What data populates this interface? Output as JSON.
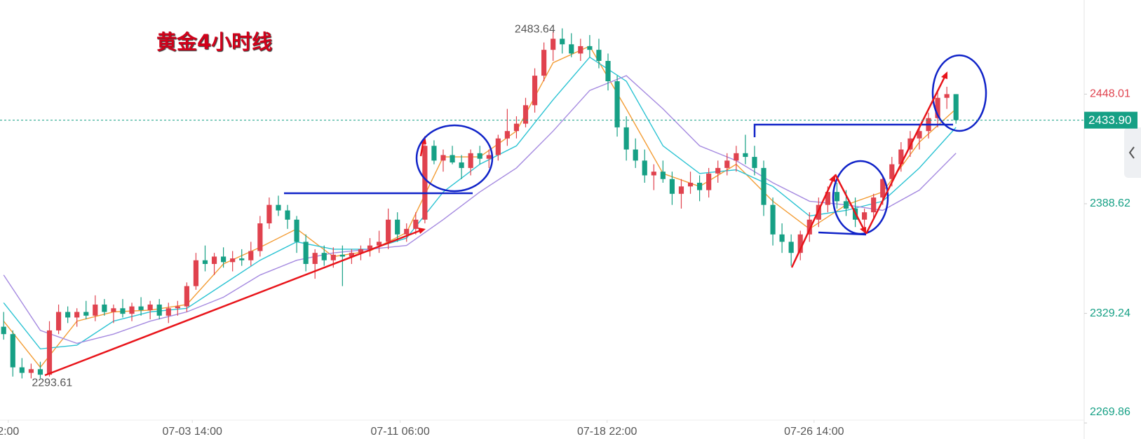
{
  "chart_data": {
    "type": "candlestick",
    "title": "黄金4小时线",
    "up_color": "#e0424e",
    "down_color": "#16a085",
    "ylim": [
      2268,
      2499
    ],
    "yticks": [
      2448.01,
      2388.62,
      2329.24,
      2269.86
    ],
    "last_price": {
      "value": 2433.9,
      "label": "2433.90"
    },
    "max_price": 2483.64,
    "min_price": 2293.61,
    "xlim": [
      -0.4,
      118
    ],
    "xticks": [
      {
        "value": 0.5,
        "label": "2:00"
      },
      {
        "value": 20.6,
        "label": "07-03 14:00"
      },
      {
        "value": 43.3,
        "label": "07-11 06:00"
      },
      {
        "value": 65.9,
        "label": "07-18 22:00"
      },
      {
        "value": 88.5,
        "label": "07-26 14:00"
      }
    ],
    "candles": [
      [
        2322,
        2330,
        2315,
        2318
      ],
      [
        2318,
        2320,
        2295,
        2300
      ],
      [
        2300,
        2305,
        2294,
        2297
      ],
      [
        2297,
        2302,
        2294,
        2299
      ],
      [
        2299,
        2303,
        2294,
        2296
      ],
      [
        2296,
        2325,
        2295,
        2320
      ],
      [
        2320,
        2334,
        2318,
        2330
      ],
      [
        2330,
        2333,
        2324,
        2327
      ],
      [
        2327,
        2332,
        2322,
        2330
      ],
      [
        2330,
        2336,
        2326,
        2328
      ],
      [
        2328,
        2339,
        2325,
        2334
      ],
      [
        2334,
        2337,
        2328,
        2330
      ],
      [
        2330,
        2334,
        2324,
        2332
      ],
      [
        2332,
        2337,
        2327,
        2329
      ],
      [
        2329,
        2335,
        2325,
        2333
      ],
      [
        2333,
        2338,
        2328,
        2331
      ],
      [
        2331,
        2336,
        2326,
        2334
      ],
      [
        2334,
        2337,
        2326,
        2328
      ],
      [
        2328,
        2335,
        2324,
        2332
      ],
      [
        2332,
        2336,
        2328,
        2333
      ],
      [
        2333,
        2346,
        2330,
        2344
      ],
      [
        2344,
        2362,
        2342,
        2358
      ],
      [
        2358,
        2366,
        2352,
        2356
      ],
      [
        2356,
        2362,
        2350,
        2360
      ],
      [
        2360,
        2365,
        2354,
        2357
      ],
      [
        2357,
        2363,
        2352,
        2359
      ],
      [
        2359,
        2364,
        2355,
        2358
      ],
      [
        2358,
        2368,
        2355,
        2363
      ],
      [
        2363,
        2382,
        2360,
        2378
      ],
      [
        2378,
        2392,
        2375,
        2388
      ],
      [
        2388,
        2393,
        2382,
        2385
      ],
      [
        2385,
        2388,
        2375,
        2380
      ],
      [
        2380,
        2382,
        2362,
        2368
      ],
      [
        2368,
        2372,
        2352,
        2356
      ],
      [
        2356,
        2364,
        2348,
        2362
      ],
      [
        2362,
        2366,
        2355,
        2358
      ],
      [
        2358,
        2365,
        2354,
        2361
      ],
      [
        2361,
        2366,
        2344,
        2360
      ],
      [
        2360,
        2364,
        2356,
        2362
      ],
      [
        2362,
        2366,
        2358,
        2364
      ],
      [
        2364,
        2370,
        2360,
        2366
      ],
      [
        2366,
        2374,
        2362,
        2368
      ],
      [
        2368,
        2386,
        2364,
        2380
      ],
      [
        2380,
        2384,
        2368,
        2372
      ],
      [
        2372,
        2378,
        2368,
        2375
      ],
      [
        2375,
        2384,
        2372,
        2380
      ],
      [
        2380,
        2424,
        2378,
        2420
      ],
      [
        2420,
        2423,
        2410,
        2412
      ],
      [
        2412,
        2418,
        2406,
        2415
      ],
      [
        2415,
        2420,
        2410,
        2411
      ],
      [
        2411,
        2415,
        2402,
        2408
      ],
      [
        2408,
        2418,
        2404,
        2416
      ],
      [
        2416,
        2420,
        2410,
        2413
      ],
      [
        2413,
        2418,
        2408,
        2415
      ],
      [
        2415,
        2426,
        2412,
        2424
      ],
      [
        2424,
        2440,
        2420,
        2428
      ],
      [
        2428,
        2436,
        2424,
        2432
      ],
      [
        2432,
        2446,
        2430,
        2442
      ],
      [
        2442,
        2462,
        2438,
        2458
      ],
      [
        2458,
        2476,
        2455,
        2472
      ],
      [
        2472,
        2482,
        2466,
        2478
      ],
      [
        2478,
        2483.64,
        2470,
        2475
      ],
      [
        2475,
        2481,
        2468,
        2470
      ],
      [
        2470,
        2478,
        2466,
        2474
      ],
      [
        2474,
        2480,
        2468,
        2472
      ],
      [
        2472,
        2478,
        2462,
        2466
      ],
      [
        2466,
        2470,
        2450,
        2455
      ],
      [
        2455,
        2458,
        2425,
        2430
      ],
      [
        2430,
        2436,
        2412,
        2418
      ],
      [
        2418,
        2424,
        2408,
        2412
      ],
      [
        2412,
        2418,
        2400,
        2404
      ],
      [
        2404,
        2410,
        2396,
        2406
      ],
      [
        2406,
        2412,
        2400,
        2402
      ],
      [
        2402,
        2406,
        2388,
        2394
      ],
      [
        2394,
        2402,
        2386,
        2398
      ],
      [
        2398,
        2406,
        2394,
        2400
      ],
      [
        2400,
        2404,
        2390,
        2396
      ],
      [
        2396,
        2408,
        2392,
        2405
      ],
      [
        2405,
        2412,
        2400,
        2408
      ],
      [
        2408,
        2416,
        2404,
        2412
      ],
      [
        2412,
        2420,
        2406,
        2416
      ],
      [
        2416,
        2426,
        2410,
        2414
      ],
      [
        2414,
        2420,
        2404,
        2408
      ],
      [
        2408,
        2412,
        2382,
        2388
      ],
      [
        2388,
        2392,
        2366,
        2372
      ],
      [
        2372,
        2378,
        2362,
        2368
      ],
      [
        2368,
        2372,
        2355,
        2362
      ],
      [
        2362,
        2374,
        2358,
        2372
      ],
      [
        2372,
        2384,
        2368,
        2380
      ],
      [
        2380,
        2392,
        2376,
        2388
      ],
      [
        2388,
        2398,
        2384,
        2395
      ],
      [
        2395,
        2400,
        2386,
        2390
      ],
      [
        2390,
        2396,
        2382,
        2386
      ],
      [
        2386,
        2392,
        2376,
        2380
      ],
      [
        2380,
        2386,
        2375,
        2384
      ],
      [
        2384,
        2394,
        2380,
        2392
      ],
      [
        2392,
        2404,
        2388,
        2402
      ],
      [
        2402,
        2414,
        2398,
        2410
      ],
      [
        2410,
        2422,
        2406,
        2418
      ],
      [
        2418,
        2428,
        2414,
        2424
      ],
      [
        2424,
        2432,
        2418,
        2428
      ],
      [
        2428,
        2438,
        2424,
        2435
      ],
      [
        2435,
        2450,
        2430,
        2446
      ],
      [
        2446,
        2452,
        2440,
        2448
      ],
      [
        2448,
        2448,
        2432,
        2433.9
      ]
    ],
    "moving_averages": [
      {
        "color": "#f39c34",
        "x": [
          0,
          4,
          8,
          12,
          16,
          20,
          24,
          28,
          32,
          36,
          40,
          44,
          48,
          52,
          56,
          60,
          64,
          68,
          72,
          76,
          80,
          84,
          88,
          92,
          96,
          100,
          104
        ],
        "values": [
          2325,
          2300,
          2325,
          2330,
          2331,
          2334,
          2356,
          2365,
          2375,
          2360,
          2363,
          2373,
          2414,
          2414,
          2428,
          2465,
          2474,
          2440,
          2405,
          2398,
          2410,
          2390,
          2375,
          2388,
          2395,
          2422,
          2440
        ]
      },
      {
        "color": "#2bc3d3",
        "x": [
          0,
          4,
          8,
          12,
          16,
          20,
          24,
          28,
          32,
          36,
          40,
          44,
          48,
          52,
          56,
          60,
          64,
          68,
          72,
          76,
          80,
          84,
          88,
          92,
          96,
          100,
          104
        ],
        "values": [
          2335,
          2310,
          2312,
          2325,
          2330,
          2332,
          2345,
          2358,
          2368,
          2364,
          2364,
          2370,
          2395,
          2410,
          2420,
          2445,
          2468,
          2455,
          2420,
          2405,
          2407,
          2398,
          2382,
          2385,
          2390,
          2408,
          2430
        ]
      },
      {
        "color": "#a58ae0",
        "x": [
          0,
          4,
          8,
          12,
          16,
          20,
          24,
          28,
          32,
          36,
          40,
          44,
          48,
          52,
          56,
          60,
          64,
          68,
          72,
          76,
          80,
          84,
          88,
          92,
          96,
          100,
          104
        ],
        "values": [
          2350,
          2320,
          2313,
          2318,
          2325,
          2330,
          2338,
          2350,
          2358,
          2362,
          2364,
          2366,
          2380,
          2395,
          2408,
          2428,
          2450,
          2458,
          2440,
          2420,
          2412,
          2400,
          2390,
          2388,
          2385,
          2396,
          2416
        ]
      }
    ]
  }
}
